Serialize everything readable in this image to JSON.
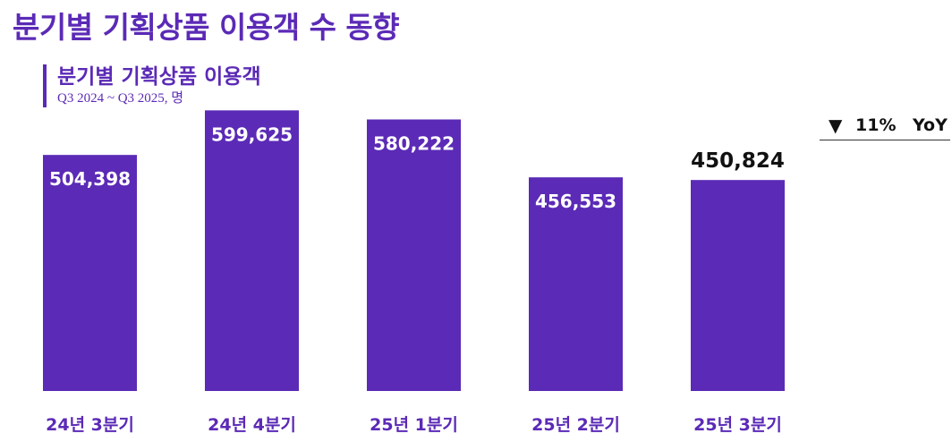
{
  "page": {
    "title": "분기별 기획상품 이용객 수 동향"
  },
  "subtitle": {
    "title": "분기별 기획상품 이용객",
    "caption": "Q3 2024 ~ Q3 2025, 명"
  },
  "yoy": {
    "arrow": "▼",
    "value": "11%",
    "label": "YoY"
  },
  "colors": {
    "bar": "#5b2ab6",
    "label_inside": "#ffffff",
    "label_outside": "#111111",
    "category": "#5b2ab6"
  },
  "chart_data": {
    "type": "bar",
    "categories": [
      "24년 3분기",
      "24년 4분기",
      "25년 1분기",
      "25년 2분기",
      "25년 3분기"
    ],
    "values": [
      504398,
      599625,
      580222,
      456553,
      450824
    ],
    "value_labels": [
      "504,398",
      "599,625",
      "580,222",
      "456,553",
      "450,824"
    ],
    "ylim": [
      0,
      650000
    ],
    "grid": false
  }
}
